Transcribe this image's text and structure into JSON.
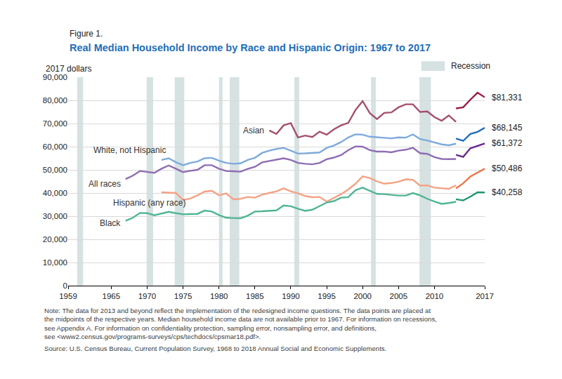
{
  "chart_data": {
    "type": "line",
    "figure_label": "Figure 1.",
    "title": "Real Median Household Income by Race and Hispanic Origin: 1967 to 2017",
    "y_unit_label": "2017 dollars",
    "xlim": [
      1959,
      2017
    ],
    "xticks": [
      1959,
      1965,
      1970,
      1975,
      1980,
      1985,
      1990,
      1995,
      2000,
      2005,
      2010,
      2017
    ],
    "ylim": [
      0,
      90000
    ],
    "yticks": [
      0,
      {
        "value": 10000,
        "label": "10,000"
      },
      {
        "value": 20000,
        "label": "20,000"
      },
      {
        "value": 30000,
        "label": "30,000"
      },
      {
        "value": 40000,
        "label": "40,000"
      },
      {
        "value": 50000,
        "label": "50,000"
      },
      {
        "value": 60000,
        "label": "60,000"
      },
      {
        "value": 70000,
        "label": "70,000"
      },
      {
        "value": 80000,
        "label": "80,000"
      },
      {
        "value": 90000,
        "label": "90,000"
      }
    ],
    "grid": "y",
    "legend": false,
    "recessions": {
      "label": "Recession",
      "color": "#d6e2e2",
      "periods": [
        [
          1960.25,
          1961.08
        ],
        [
          1969.92,
          1970.83
        ],
        [
          1973.83,
          1975.17
        ],
        [
          1980.0,
          1980.5
        ],
        [
          1981.5,
          1982.83
        ],
        [
          1990.5,
          1991.17
        ],
        [
          2001.17,
          2001.83
        ],
        [
          2007.92,
          2009.5
        ]
      ]
    },
    "series": [
      {
        "name": "Asian",
        "segments": [
          {
            "color": "#a4506e",
            "x": [
              1987,
              1988,
              1989,
              1990,
              1991,
              1992,
              1993,
              1994,
              1995,
              1996,
              1997,
              1998,
              1999,
              2000,
              2001,
              2002,
              2003,
              2004,
              2005,
              2006,
              2007,
              2008,
              2009,
              2010,
              2011,
              2012,
              2013
            ],
            "values": [
              67000,
              65500,
              69200,
              70200,
              64000,
              64800,
              64200,
              66500,
              65200,
              67500,
              69200,
              70300,
              75800,
              79700,
              74500,
              71900,
              74600,
              74800,
              77000,
              78300,
              78300,
              75000,
              75200,
              72800,
              71200,
              73500,
              70700
            ]
          },
          {
            "color": "#9a1b4b",
            "x": [
              2013,
              2014,
              2015,
              2016,
              2017
            ],
            "values": [
              76500,
              77000,
              80300,
              83300,
              81331
            ],
            "value_labels": [
              null,
              null,
              null,
              null,
              "$81,331"
            ]
          }
        ]
      },
      {
        "name": "White, not Hispanic",
        "segments": [
          {
            "color": "#7eaadb",
            "x": [
              1972,
              1973,
              1974,
              1975,
              1976,
              1977,
              1978,
              1979,
              1980,
              1981,
              1982,
              1983,
              1984,
              1985,
              1986,
              1987,
              1988,
              1989,
              1990,
              1991,
              1992,
              1993,
              1994,
              1995,
              1996,
              1997,
              1998,
              1999,
              2000,
              2001,
              2002,
              2003,
              2004,
              2005,
              2006,
              2007,
              2008,
              2009,
              2010,
              2011,
              2012,
              2013
            ],
            "values": [
              54300,
              55000,
              53300,
              52000,
              53000,
              53600,
              55000,
              55200,
              54000,
              53000,
              52600,
              52800,
              54300,
              55200,
              57300,
              58300,
              59000,
              59500,
              58300,
              57000,
              57100,
              57200,
              57500,
              59500,
              60500,
              62000,
              64000,
              65300,
              65200,
              64300,
              64000,
              63700,
              63600,
              64000,
              63900,
              65300,
              63300,
              62700,
              61800,
              61000,
              60600,
              61300
            ]
          },
          {
            "color": "#1f6fb8",
            "x": [
              2013,
              2014,
              2015,
              2016,
              2017
            ],
            "values": [
              63500,
              62500,
              65500,
              66400,
              68145
            ],
            "value_labels": [
              null,
              null,
              null,
              null,
              "$68,145"
            ]
          }
        ]
      },
      {
        "name": "All races",
        "segments": [
          {
            "color": "#8e6db3",
            "x": [
              1967,
              1968,
              1969,
              1970,
              1971,
              1972,
              1973,
              1974,
              1975,
              1976,
              1977,
              1978,
              1979,
              1980,
              1981,
              1982,
              1983,
              1984,
              1985,
              1986,
              1987,
              1988,
              1989,
              1990,
              1991,
              1992,
              1993,
              1994,
              1995,
              1996,
              1997,
              1998,
              1999,
              2000,
              2001,
              2002,
              2003,
              2004,
              2005,
              2006,
              2007,
              2008,
              2009,
              2010,
              2011,
              2012,
              2013
            ],
            "values": [
              46000,
              47500,
              49500,
              49200,
              48700,
              50500,
              51900,
              50500,
              49000,
              49600,
              50000,
              52000,
              52000,
              50500,
              49500,
              49400,
              49200,
              50400,
              51300,
              53200,
              53800,
              54200,
              55000,
              54300,
              53000,
              52600,
              52400,
              53000,
              54600,
              55300,
              56400,
              58500,
              60100,
              60000,
              58500,
              57900,
              57900,
              57600,
              58300,
              58700,
              59500,
              57200,
              56900,
              55500,
              54700,
              54600,
              54700
            ]
          },
          {
            "color": "#6a2c91",
            "x": [
              2013,
              2014,
              2015,
              2016,
              2017
            ],
            "values": [
              56500,
              55600,
              59300,
              60300,
              61372
            ],
            "value_labels": [
              null,
              null,
              null,
              null,
              "$61,372"
            ]
          }
        ]
      },
      {
        "name": "Hispanic (any race)",
        "segments": [
          {
            "color": "#f4a285",
            "x": [
              1972,
              1973,
              1974,
              1975,
              1976,
              1977,
              1978,
              1979,
              1980,
              1981,
              1982,
              1983,
              1984,
              1985,
              1986,
              1987,
              1988,
              1989,
              1990,
              1991,
              1992,
              1993,
              1994,
              1995,
              1996,
              1997,
              1998,
              1999,
              2000,
              2001,
              2002,
              2003,
              2004,
              2005,
              2006,
              2007,
              2008,
              2009,
              2010,
              2011,
              2012,
              2013
            ],
            "values": [
              40300,
              40200,
              40000,
              37000,
              37600,
              39000,
              40600,
              41000,
              39000,
              39800,
              37300,
              37500,
              38300,
              38000,
              39300,
              40000,
              40700,
              42000,
              40700,
              39900,
              38700,
              38200,
              38300,
              36300,
              37900,
              39500,
              41500,
              44000,
              47200,
              46500,
              45000,
              44000,
              44300,
              44900,
              45900,
              45700,
              43200,
              43300,
              42300,
              42100,
              41800,
              43300
            ]
          },
          {
            "color": "#ee7649",
            "x": [
              2013,
              2014,
              2015,
              2016,
              2017
            ],
            "values": [
              42000,
              44200,
              47100,
              48900,
              50486
            ],
            "value_labels": [
              null,
              null,
              null,
              null,
              "$50,486"
            ]
          }
        ]
      },
      {
        "name": "Black",
        "segments": [
          {
            "color": "#4fb594",
            "x": [
              1967,
              1968,
              1969,
              1970,
              1971,
              1972,
              1973,
              1974,
              1975,
              1976,
              1977,
              1978,
              1979,
              1980,
              1981,
              1982,
              1983,
              1984,
              1985,
              1986,
              1987,
              1988,
              1989,
              1990,
              1991,
              1992,
              1993,
              1994,
              1995,
              1996,
              1997,
              1998,
              1999,
              2000,
              2001,
              2002,
              2003,
              2004,
              2005,
              2006,
              2007,
              2008,
              2009,
              2010,
              2011,
              2012,
              2013
            ],
            "values": [
              28000,
              29300,
              31400,
              31300,
              30400,
              31200,
              31900,
              31300,
              30800,
              30900,
              31000,
              32400,
              32000,
              30500,
              29300,
              29200,
              29100,
              30200,
              32000,
              32100,
              32200,
              32500,
              34600,
              34300,
              33200,
              32300,
              32800,
              34400,
              35900,
              36500,
              38000,
              38200,
              41200,
              42300,
              41000,
              39600,
              39500,
              39200,
              38900,
              38900,
              40000,
              39000,
              37500,
              36300,
              35300,
              35700,
              36200
            ]
          },
          {
            "color": "#1c9872",
            "x": [
              2013,
              2014,
              2015,
              2016,
              2017
            ],
            "values": [
              37300,
              36800,
              38400,
              40300,
              40258
            ],
            "value_labels": [
              null,
              null,
              null,
              null,
              "$40,258"
            ]
          }
        ]
      }
    ],
    "notes": [
      "Note: The data for 2013 and beyond reflect the implementation of the redesigned income questions. The data points are placed at",
      "the midpoints of the respective years. Median household income data are not available prior to 1967. For information on recessions,",
      "see Appendix A. For information on confidentiality protection, sampling error, nonsampling error, and definitions,",
      "see <www2.census.gov/programs-surveys/cps/techdocs/cpsmar18.pdf>."
    ],
    "source": "Source: U.S. Census Bureau, Current Population Survey, 1968 to 2018 Annual Social and Economic Supplements."
  }
}
